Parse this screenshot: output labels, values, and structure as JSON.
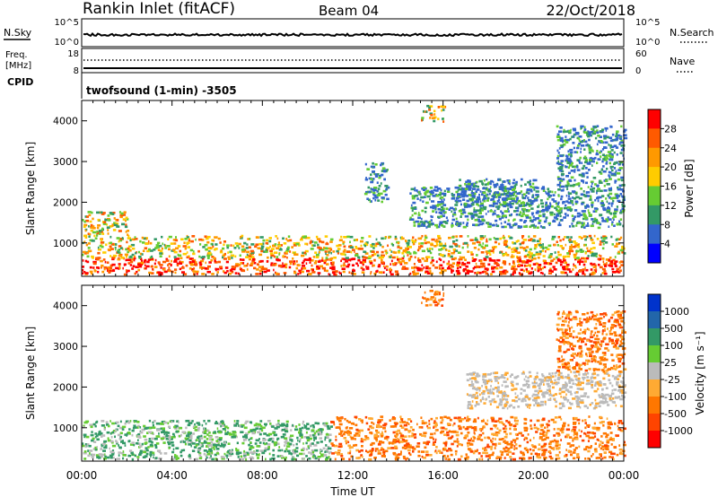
{
  "header": {
    "station": "Rankin Inlet (fitACF)",
    "beam": "Beam 04",
    "date": "22/Oct/2018"
  },
  "status_panels": {
    "nsky": {
      "label": "N.Sky",
      "right_label": "N.Search",
      "ticks_left": [
        "10^5",
        "10^0"
      ],
      "ticks_right": [
        "10^5",
        "10^0"
      ]
    },
    "freq": {
      "label_line1": "Freq.",
      "label_line2": "[MHz]",
      "right_label": "Nave",
      "ticks_left": [
        "18",
        "8"
      ],
      "ticks_right": [
        "60",
        "0"
      ]
    },
    "cpid": {
      "label": "CPID",
      "program": "twofsound (1-min) -3505"
    }
  },
  "chart_data": [
    {
      "type": "heatmap",
      "name": "power",
      "xlabel": "",
      "ylabel": "Slant Range [km]",
      "x_range_hours": [
        0,
        24
      ],
      "y_range_km": [
        180,
        4500
      ],
      "y_ticks": [
        1000,
        2000,
        3000,
        4000
      ],
      "colorbar": {
        "label": "Power [dB]",
        "ticks": [
          "28",
          "24",
          "20",
          "16",
          "12",
          "8",
          "4"
        ],
        "colors": [
          "#ff0000",
          "#ff5a00",
          "#ff9900",
          "#ffcc00",
          "#66cc33",
          "#339966",
          "#3366cc",
          "#0000ff"
        ]
      },
      "echo_regions": [
        {
          "x0": 0,
          "x1": 24,
          "y0": 250,
          "y1": 650,
          "level": "strong"
        },
        {
          "x0": 0,
          "x1": 24,
          "y0": 650,
          "y1": 1200,
          "level": "medium"
        },
        {
          "x0": 0,
          "x1": 2,
          "y0": 1200,
          "y1": 1800,
          "level": "medium"
        },
        {
          "x0": 14.5,
          "x1": 24,
          "y0": 1400,
          "y1": 2400,
          "level": "weak"
        },
        {
          "x0": 16.5,
          "x1": 20,
          "y0": 1900,
          "y1": 2600,
          "level": "weak"
        },
        {
          "x0": 21,
          "x1": 24,
          "y0": 2400,
          "y1": 3900,
          "level": "weak"
        },
        {
          "x0": 12.5,
          "x1": 13.5,
          "y0": 2000,
          "y1": 3000,
          "level": "weak"
        },
        {
          "x0": 15,
          "x1": 16,
          "y0": 4000,
          "y1": 4400,
          "level": "medium"
        }
      ]
    },
    {
      "type": "heatmap",
      "name": "velocity",
      "xlabel": "Time UT",
      "ylabel": "Slant Range [km]",
      "x_range_hours": [
        0,
        24
      ],
      "y_range_km": [
        180,
        4500
      ],
      "y_ticks": [
        1000,
        2000,
        3000,
        4000
      ],
      "x_ticks": [
        "00:00",
        "04:00",
        "08:00",
        "12:00",
        "16:00",
        "20:00",
        "00:00"
      ],
      "colorbar": {
        "label": "Velocity [m s⁻¹]",
        "ticks": [
          "1000",
          "500",
          "100",
          "25",
          "-25",
          "-100",
          "-500",
          "-1000"
        ],
        "colors": [
          "#0033cc",
          "#2266aa",
          "#339966",
          "#66cc33",
          "#bbbbbb",
          "#ffaa33",
          "#ff7700",
          "#ff4400",
          "#ff0000"
        ]
      },
      "echo_regions": [
        {
          "x0": 0,
          "x1": 11,
          "y0": 250,
          "y1": 1200,
          "level": "positive"
        },
        {
          "x0": 11,
          "x1": 24,
          "y0": 250,
          "y1": 1300,
          "level": "negative"
        },
        {
          "x0": 17,
          "x1": 24,
          "y0": 1500,
          "y1": 2400,
          "level": "ground"
        },
        {
          "x0": 21,
          "x1": 24,
          "y0": 2400,
          "y1": 3900,
          "level": "negative"
        },
        {
          "x0": 15,
          "x1": 16,
          "y0": 4000,
          "y1": 4400,
          "level": "negative"
        }
      ]
    }
  ]
}
